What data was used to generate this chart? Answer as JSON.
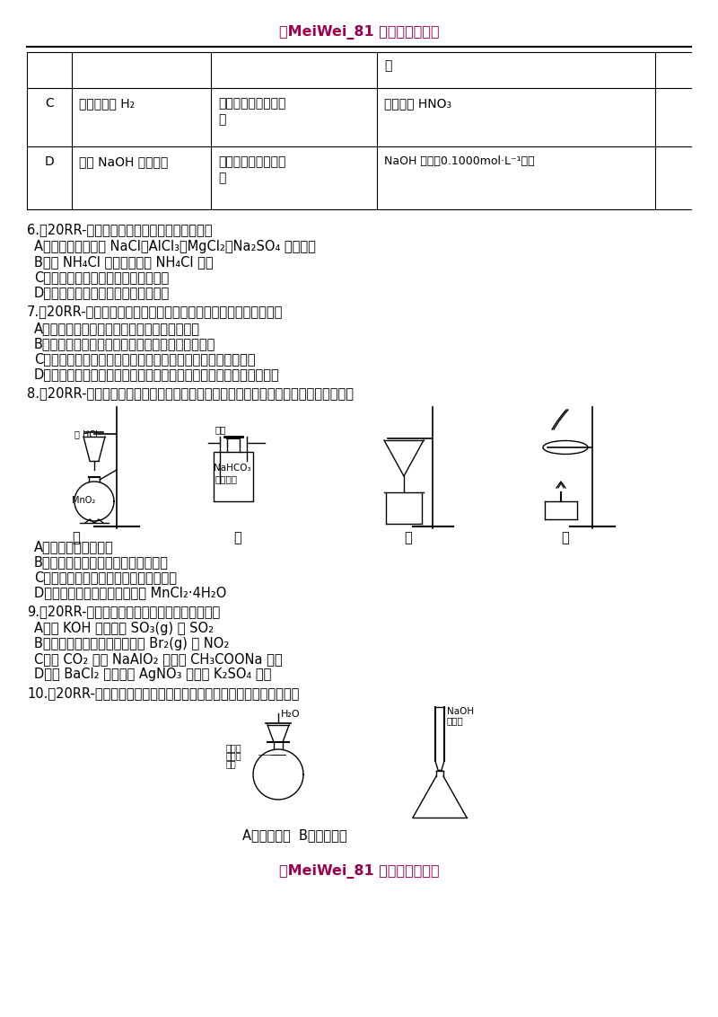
{
  "header_text": "【MeiWei_81 重点借鉴文档】",
  "footer_text": "【MeiWei_81 重点借鉴文档】",
  "header_color": "#9B0050",
  "bg_color": "#ffffff",
  "q6_line": "6.【20RR-福建】下列实验能达到目的的是（）",
  "q6_opts": [
    "A．只滴加氨水鉴别 NaCl、AlCl₃、MgCl₂、Na₂SO₄ 四种溶液",
    "B．将 NH₄Cl 溶液蒸干制备 NH₄Cl 固体",
    "C．用萃取分液的方法除去酒精中的水",
    "D．用可见光束照射以区别溶液和胶体"
  ],
  "q7_line": "7.【20RR-新课标】下列有关仪器使用方法或实验操作正确的是（）",
  "q7_opts": [
    "A．洗净的锥形瓶和容量瓶可以放进烘箱中烘干",
    "B．酸式滴定管装标准溶液前，必须先用该溶液润洗",
    "C．酸碱滴定实验中，用待滴定溶液润洗锥形瓶以减小实验误差",
    "D．用容量瓶配溶液时，若加水超过刻度线，立即用滴管吸出多余液体"
  ],
  "q8_line": "8.【20RR-江苏】下列装置应用于实验室制氯气并回收氯化锰的实验，能达到实验目的是",
  "q8_opts": [
    "A．用装置甲制取氯气",
    "B．用装置乙除去氯气中的少量氯化氢",
    "C．用装置丙分离二氧化锰和氯化锰溶液",
    "D．用装置丁蒸干氯化锰溶液制 MnCl₂·4H₂O"
  ],
  "q9_line": "9.【20RR-重庆】下列实验可实现鉴别目的是（）",
  "q9_opts": [
    "A．用 KOH 溶液鉴别 SO₃(g) 和 SO₂",
    "B．用湿润碘化钾淀粉试纸鉴别 Br₂(g) 和 NO₂",
    "C．用 CO₂ 鉴别 NaAlO₂ 溶液和 CH₃COONa 溶液",
    "D．用 BaCl₂ 溶液鉴别 AgNO₃ 溶液和 K₂SO₄ 溶液"
  ],
  "q10_line": "10.【20RR-山东】下列实验操作或装置（略去部分加持仪器）正确的是",
  "q10_sub": "A．配制溶液 B．中和滴定",
  "table_row0_col3": "液",
  "table_row1_col0": "C",
  "table_row1_col1": "实验室制取 H₂",
  "table_row1_col2a": "试管、带导管的橡皮",
  "table_row1_col2b": "塞",
  "table_row1_col3": "锌粒、稀 HNO₃",
  "table_row2_col0": "D",
  "table_row2_col1": "测定 NaOH 溶液浓度",
  "table_row2_col2a": "滴定管、锥形瓶、烧",
  "table_row2_col2b": "杯",
  "table_row2_col3": "NaOH 溶液、0.1000mol·L⁻¹盐酸"
}
